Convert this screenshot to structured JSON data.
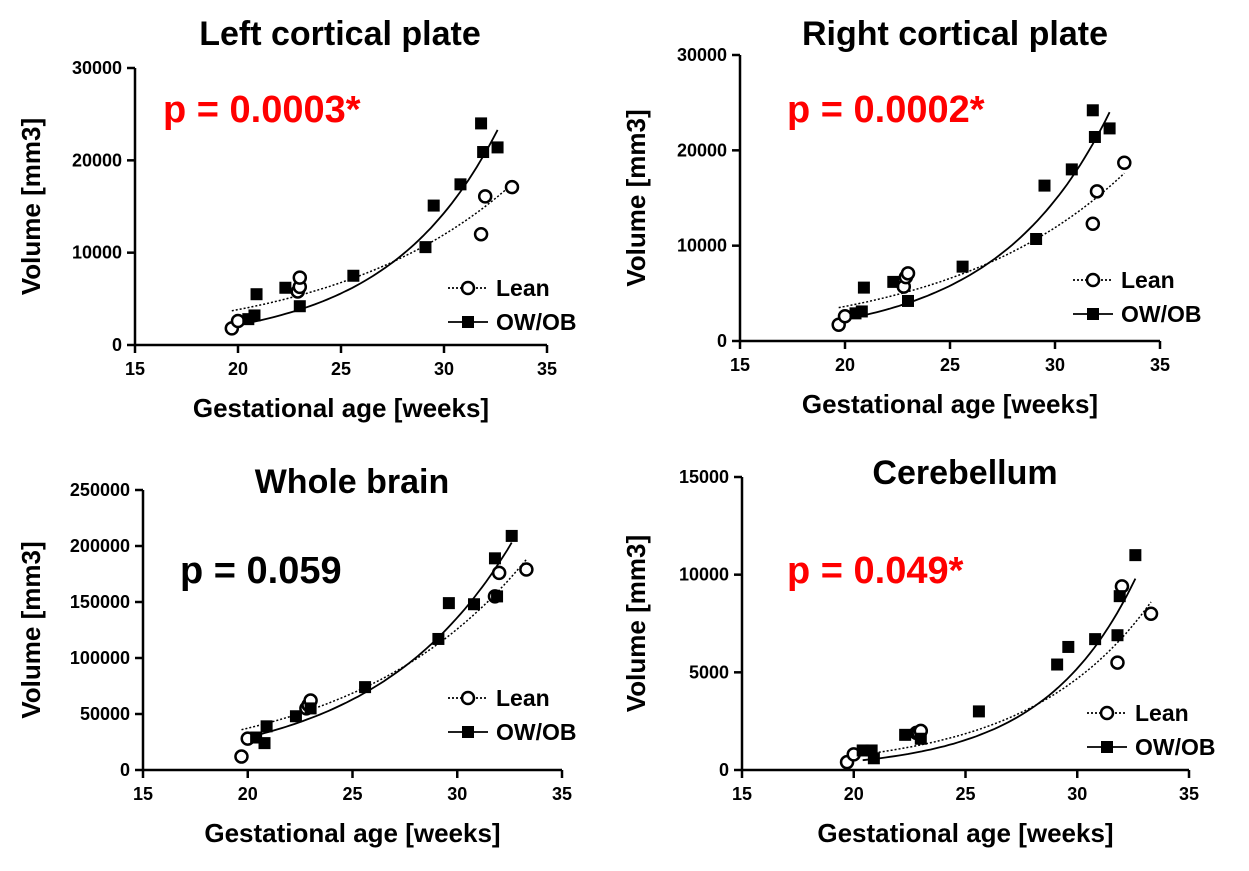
{
  "chart_data": [
    {
      "type": "scatter",
      "title": "Left cortical plate",
      "xlabel": "Gestational age [weeks]",
      "ylabel": "Volume [mm3]",
      "xlim": [
        15,
        35
      ],
      "ylim": [
        0,
        30000
      ],
      "xticks": [
        "15",
        "20",
        "25",
        "30",
        "35"
      ],
      "yticks": [
        "0",
        "10000",
        "20000",
        "30000"
      ],
      "annotation": {
        "text": "p = 0.0003*",
        "color": "#ff0000"
      },
      "legend_position": "bottom-right",
      "series": [
        {
          "name": "Lean",
          "marker": "open-circle",
          "line": "dotted",
          "x": [
            19.7,
            20.0,
            22.9,
            23.0,
            23.0,
            31.8,
            32.0,
            33.3
          ],
          "y": [
            1800,
            2600,
            5800,
            6300,
            7300,
            12000,
            16100,
            17100
          ],
          "fit": [
            3700,
            17400
          ]
        },
        {
          "name": "OW/OB",
          "marker": "filled-square",
          "line": "solid",
          "x": [
            20.5,
            20.8,
            20.9,
            22.3,
            23.0,
            25.6,
            29.1,
            29.5,
            30.8,
            31.8,
            31.9,
            32.6
          ],
          "y": [
            2800,
            3200,
            5500,
            6200,
            4200,
            7500,
            10600,
            15100,
            17400,
            24000,
            20900,
            21400
          ],
          "fit": [
            2400,
            23300
          ]
        }
      ]
    },
    {
      "type": "scatter",
      "title": "Right cortical plate",
      "xlabel": "Gestational age [weeks]",
      "ylabel": "Volume [mm3]",
      "xlim": [
        15,
        35
      ],
      "ylim": [
        0,
        30000
      ],
      "xticks": [
        "15",
        "20",
        "25",
        "30",
        "35"
      ],
      "yticks": [
        "0",
        "10000",
        "20000",
        "30000"
      ],
      "annotation": {
        "text": "p = 0.0002*",
        "color": "#ff0000"
      },
      "legend_position": "bottom-right",
      "series": [
        {
          "name": "Lean",
          "marker": "open-circle",
          "line": "dotted",
          "x": [
            19.7,
            20.0,
            22.8,
            22.9,
            23.0,
            31.8,
            32.0,
            33.3
          ],
          "y": [
            1700,
            2600,
            5700,
            6700,
            7100,
            12300,
            15700,
            18700
          ],
          "fit": [
            3500,
            17600
          ]
        },
        {
          "name": "OW/OB",
          "marker": "filled-square",
          "line": "solid",
          "x": [
            20.5,
            20.8,
            20.9,
            22.3,
            23.0,
            25.6,
            29.1,
            29.5,
            30.8,
            31.8,
            31.9,
            32.6
          ],
          "y": [
            2900,
            3100,
            5600,
            6200,
            4200,
            7800,
            10700,
            16300,
            18000,
            24200,
            21400,
            22300
          ],
          "fit": [
            2500,
            24000
          ]
        }
      ]
    },
    {
      "type": "scatter",
      "title": "Whole brain",
      "xlabel": "Gestational age [weeks]",
      "ylabel": "Volume [mm3]",
      "xlim": [
        15,
        35
      ],
      "ylim": [
        0,
        250000
      ],
      "xticks": [
        "15",
        "20",
        "25",
        "30",
        "35"
      ],
      "yticks": [
        "0",
        "50000",
        "100000",
        "150000",
        "200000",
        "250000"
      ],
      "annotation": {
        "text": "p = 0.059",
        "color": "#000000"
      },
      "legend_position": "bottom-right",
      "series": [
        {
          "name": "Lean",
          "marker": "open-circle",
          "line": "dotted",
          "x": [
            19.7,
            20.0,
            22.8,
            22.9,
            23.0,
            31.8,
            32.0,
            33.3
          ],
          "y": [
            12000,
            28000,
            55000,
            58000,
            62000,
            155000,
            176000,
            179000
          ],
          "fit": [
            36000,
            188000
          ]
        },
        {
          "name": "OW/OB",
          "marker": "filled-square",
          "line": "solid",
          "x": [
            20.4,
            20.8,
            20.9,
            22.3,
            23.0,
            25.6,
            29.1,
            29.6,
            30.8,
            31.8,
            31.9,
            32.6
          ],
          "y": [
            29000,
            24000,
            39000,
            48000,
            55000,
            74000,
            117000,
            149000,
            148000,
            189000,
            155000,
            209000
          ],
          "fit": [
            31000,
            203000
          ]
        }
      ]
    },
    {
      "type": "scatter",
      "title": "Cerebellum",
      "xlabel": "Gestational age [weeks]",
      "ylabel": "Volume [mm3]",
      "xlim": [
        15,
        35
      ],
      "ylim": [
        0,
        15000
      ],
      "xticks": [
        "15",
        "20",
        "25",
        "30",
        "35"
      ],
      "yticks": [
        "0",
        "5000",
        "10000",
        "15000"
      ],
      "annotation": {
        "text": "p = 0.049*",
        "color": "#ff0000"
      },
      "legend_position": "bottom-right",
      "series": [
        {
          "name": "Lean",
          "marker": "open-circle",
          "line": "dotted",
          "x": [
            19.7,
            20.0,
            22.8,
            22.9,
            23.0,
            31.8,
            32.0,
            33.3
          ],
          "y": [
            400,
            800,
            1900,
            1900,
            2000,
            5500,
            9400,
            8000
          ],
          "fit": [
            700,
            8600
          ]
        },
        {
          "name": "OW/OB",
          "marker": "filled-square",
          "line": "solid",
          "x": [
            20.4,
            20.8,
            20.9,
            22.3,
            23.0,
            25.6,
            29.1,
            29.6,
            30.8,
            31.8,
            31.9,
            32.6
          ],
          "y": [
            1000,
            1000,
            600,
            1800,
            1600,
            3000,
            5400,
            6300,
            6700,
            6900,
            8900,
            11000
          ],
          "fit": [
            500,
            9800
          ]
        }
      ]
    }
  ]
}
